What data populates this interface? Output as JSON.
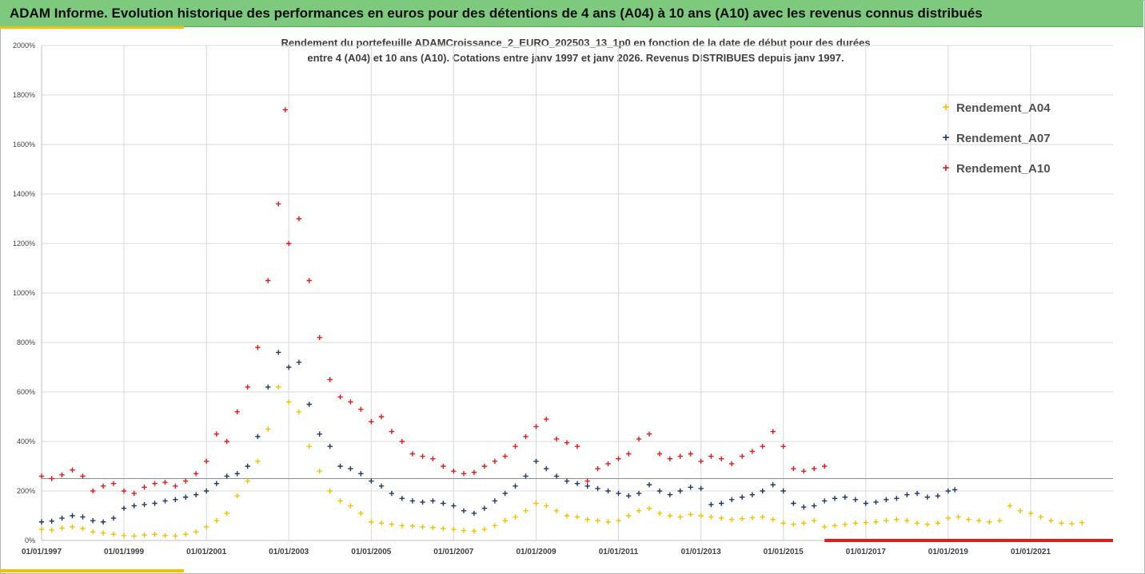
{
  "header": {
    "title": "ADAM Informe. Evolution historique des performances en euros pour des détentions de 4 ans (A04) à 10 ans (A10) avec les revenus connus distribués"
  },
  "colors": {
    "header_bg": "#7dc97d",
    "accent": "#f2c200",
    "A04": "#f2c200",
    "A07": "#203864",
    "A10": "#e41a1c"
  },
  "chart_data": {
    "type": "scatter",
    "title_line1": "Rendement du portefeuille ADAMCroissance_2_EURO_202503_13_1p0  en fonction de la date de début pour des durées",
    "title_line2": "entre 4 (A04) et 10 ans (A10). Cotations entre janv 1997 et janv 2026. Revenus DISTRIBUES depuis janv 1997.",
    "xlabel": "",
    "ylabel": "",
    "x_range": [
      "1997-01-01",
      "2023-01-01"
    ],
    "ylim": [
      0,
      2000
    ],
    "y_ticks": [
      "0%",
      "200%",
      "400%",
      "600%",
      "800%",
      "1000%",
      "1200%",
      "1400%",
      "1600%",
      "1800%",
      "2000%"
    ],
    "x_ticks": [
      "01/01/1997",
      "01/01/1999",
      "01/01/2001",
      "01/01/2003",
      "01/01/2005",
      "01/01/2007",
      "01/01/2009",
      "01/01/2011",
      "01/01/2013",
      "01/01/2015",
      "01/01/2017",
      "01/01/2019",
      "01/01/2021"
    ],
    "reference_line_y": 250,
    "grid": true,
    "legend_position": "top-right",
    "series": [
      {
        "name": "Rendement_A04",
        "color": "#f2c200",
        "points": [
          [
            "1997-01-01",
            45
          ],
          [
            "1997-04-01",
            42
          ],
          [
            "1997-07-01",
            50
          ],
          [
            "1997-10-01",
            55
          ],
          [
            "1998-01-01",
            48
          ],
          [
            "1998-04-01",
            35
          ],
          [
            "1998-07-01",
            30
          ],
          [
            "1998-10-01",
            25
          ],
          [
            "1999-01-01",
            20
          ],
          [
            "1999-04-01",
            18
          ],
          [
            "1999-07-01",
            22
          ],
          [
            "1999-10-01",
            25
          ],
          [
            "2000-01-01",
            20
          ],
          [
            "2000-04-01",
            18
          ],
          [
            "2000-07-01",
            25
          ],
          [
            "2000-10-01",
            35
          ],
          [
            "2001-01-01",
            55
          ],
          [
            "2001-04-01",
            80
          ],
          [
            "2001-07-01",
            110
          ],
          [
            "2001-10-01",
            180
          ],
          [
            "2002-01-01",
            240
          ],
          [
            "2002-04-01",
            320
          ],
          [
            "2002-07-01",
            450
          ],
          [
            "2002-10-01",
            620
          ],
          [
            "2003-01-01",
            560
          ],
          [
            "2003-04-01",
            520
          ],
          [
            "2003-07-01",
            380
          ],
          [
            "2003-10-01",
            280
          ],
          [
            "2004-01-01",
            200
          ],
          [
            "2004-04-01",
            160
          ],
          [
            "2004-07-01",
            140
          ],
          [
            "2004-10-01",
            110
          ],
          [
            "2005-01-01",
            75
          ],
          [
            "2005-04-01",
            70
          ],
          [
            "2005-07-01",
            65
          ],
          [
            "2005-10-01",
            60
          ],
          [
            "2006-01-01",
            58
          ],
          [
            "2006-04-01",
            55
          ],
          [
            "2006-07-01",
            52
          ],
          [
            "2006-10-01",
            48
          ],
          [
            "2007-01-01",
            45
          ],
          [
            "2007-04-01",
            40
          ],
          [
            "2007-07-01",
            38
          ],
          [
            "2007-10-01",
            45
          ],
          [
            "2008-01-01",
            60
          ],
          [
            "2008-04-01",
            80
          ],
          [
            "2008-07-01",
            95
          ],
          [
            "2008-10-01",
            120
          ],
          [
            "2009-01-01",
            150
          ],
          [
            "2009-04-01",
            140
          ],
          [
            "2009-07-01",
            120
          ],
          [
            "2009-10-01",
            100
          ],
          [
            "2010-01-01",
            95
          ],
          [
            "2010-04-01",
            85
          ],
          [
            "2010-07-01",
            80
          ],
          [
            "2010-10-01",
            75
          ],
          [
            "2011-01-01",
            80
          ],
          [
            "2011-04-01",
            100
          ],
          [
            "2011-07-01",
            120
          ],
          [
            "2011-10-01",
            130
          ],
          [
            "2012-01-01",
            110
          ],
          [
            "2012-04-01",
            100
          ],
          [
            "2012-07-01",
            95
          ],
          [
            "2012-10-01",
            105
          ],
          [
            "2013-01-01",
            100
          ],
          [
            "2013-04-01",
            95
          ],
          [
            "2013-07-01",
            90
          ],
          [
            "2013-10-01",
            85
          ],
          [
            "2014-01-01",
            88
          ],
          [
            "2014-04-01",
            92
          ],
          [
            "2014-07-01",
            95
          ],
          [
            "2014-10-01",
            85
          ],
          [
            "2015-01-01",
            70
          ],
          [
            "2015-04-01",
            65
          ],
          [
            "2015-07-01",
            70
          ],
          [
            "2015-10-01",
            80
          ],
          [
            "2016-01-01",
            55
          ],
          [
            "2016-04-01",
            60
          ],
          [
            "2016-07-01",
            65
          ],
          [
            "2016-10-01",
            70
          ],
          [
            "2017-01-01",
            72
          ],
          [
            "2017-04-01",
            75
          ],
          [
            "2017-07-01",
            80
          ],
          [
            "2017-10-01",
            85
          ],
          [
            "2018-01-01",
            80
          ],
          [
            "2018-04-01",
            70
          ],
          [
            "2018-07-01",
            65
          ],
          [
            "2018-10-01",
            70
          ],
          [
            "2019-01-01",
            90
          ],
          [
            "2019-04-01",
            95
          ],
          [
            "2019-07-01",
            85
          ],
          [
            "2019-10-01",
            80
          ],
          [
            "2020-01-01",
            75
          ],
          [
            "2020-04-01",
            80
          ],
          [
            "2020-07-01",
            140
          ],
          [
            "2020-10-01",
            120
          ],
          [
            "2021-01-01",
            110
          ],
          [
            "2021-04-01",
            95
          ],
          [
            "2021-07-01",
            80
          ],
          [
            "2021-10-01",
            70
          ],
          [
            "2022-01-01",
            68
          ],
          [
            "2022-04-01",
            72
          ]
        ]
      },
      {
        "name": "Rendement_A07",
        "color": "#203864",
        "points": [
          [
            "1997-01-01",
            75
          ],
          [
            "1997-04-01",
            78
          ],
          [
            "1997-07-01",
            90
          ],
          [
            "1997-10-01",
            100
          ],
          [
            "1998-01-01",
            95
          ],
          [
            "1998-04-01",
            80
          ],
          [
            "1998-07-01",
            75
          ],
          [
            "1998-10-01",
            90
          ],
          [
            "1999-01-01",
            130
          ],
          [
            "1999-04-01",
            140
          ],
          [
            "1999-07-01",
            145
          ],
          [
            "1999-10-01",
            150
          ],
          [
            "2000-01-01",
            160
          ],
          [
            "2000-04-01",
            165
          ],
          [
            "2000-07-01",
            175
          ],
          [
            "2000-10-01",
            185
          ],
          [
            "2001-01-01",
            200
          ],
          [
            "2001-04-01",
            230
          ],
          [
            "2001-07-01",
            260
          ],
          [
            "2001-10-01",
            270
          ],
          [
            "2002-01-01",
            300
          ],
          [
            "2002-04-01",
            420
          ],
          [
            "2002-07-01",
            620
          ],
          [
            "2002-10-01",
            760
          ],
          [
            "2003-01-01",
            700
          ],
          [
            "2003-04-01",
            720
          ],
          [
            "2003-07-01",
            550
          ],
          [
            "2003-10-01",
            430
          ],
          [
            "2004-01-01",
            380
          ],
          [
            "2004-04-01",
            300
          ],
          [
            "2004-07-01",
            290
          ],
          [
            "2004-10-01",
            270
          ],
          [
            "2005-01-01",
            240
          ],
          [
            "2005-04-01",
            220
          ],
          [
            "2005-07-01",
            190
          ],
          [
            "2005-10-01",
            170
          ],
          [
            "2006-01-01",
            160
          ],
          [
            "2006-04-01",
            155
          ],
          [
            "2006-07-01",
            160
          ],
          [
            "2006-10-01",
            150
          ],
          [
            "2007-01-01",
            140
          ],
          [
            "2007-04-01",
            120
          ],
          [
            "2007-07-01",
            110
          ],
          [
            "2007-10-01",
            130
          ],
          [
            "2008-01-01",
            160
          ],
          [
            "2008-04-01",
            190
          ],
          [
            "2008-07-01",
            220
          ],
          [
            "2008-10-01",
            260
          ],
          [
            "2009-01-01",
            320
          ],
          [
            "2009-04-01",
            290
          ],
          [
            "2009-07-01",
            260
          ],
          [
            "2009-10-01",
            240
          ],
          [
            "2010-01-01",
            230
          ],
          [
            "2010-04-01",
            220
          ],
          [
            "2010-07-01",
            210
          ],
          [
            "2010-10-01",
            200
          ],
          [
            "2011-01-01",
            190
          ],
          [
            "2011-04-01",
            180
          ],
          [
            "2011-07-01",
            190
          ],
          [
            "2011-10-01",
            225
          ],
          [
            "2012-01-01",
            200
          ],
          [
            "2012-04-01",
            185
          ],
          [
            "2012-07-01",
            200
          ],
          [
            "2012-10-01",
            215
          ],
          [
            "2013-01-01",
            210
          ],
          [
            "2013-04-01",
            145
          ],
          [
            "2013-07-01",
            150
          ],
          [
            "2013-10-01",
            165
          ],
          [
            "2014-01-01",
            175
          ],
          [
            "2014-04-01",
            185
          ],
          [
            "2014-07-01",
            200
          ],
          [
            "2014-10-01",
            225
          ],
          [
            "2015-01-01",
            200
          ],
          [
            "2015-04-01",
            150
          ],
          [
            "2015-07-01",
            135
          ],
          [
            "2015-10-01",
            140
          ],
          [
            "2016-01-01",
            160
          ],
          [
            "2016-04-01",
            170
          ],
          [
            "2016-07-01",
            175
          ],
          [
            "2016-10-01",
            165
          ],
          [
            "2017-01-01",
            150
          ],
          [
            "2017-04-01",
            155
          ],
          [
            "2017-07-01",
            165
          ],
          [
            "2017-10-01",
            170
          ],
          [
            "2018-01-01",
            185
          ],
          [
            "2018-04-01",
            190
          ],
          [
            "2018-07-01",
            175
          ],
          [
            "2018-10-01",
            180
          ],
          [
            "2019-01-01",
            200
          ],
          [
            "2019-03-01",
            205
          ]
        ]
      },
      {
        "name": "Rendement_A10",
        "color": "#e41a1c",
        "points": [
          [
            "1997-01-01",
            260
          ],
          [
            "1997-04-01",
            250
          ],
          [
            "1997-07-01",
            265
          ],
          [
            "1997-10-01",
            285
          ],
          [
            "1998-01-01",
            260
          ],
          [
            "1998-04-01",
            200
          ],
          [
            "1998-07-01",
            220
          ],
          [
            "1998-10-01",
            230
          ],
          [
            "1999-01-01",
            200
          ],
          [
            "1999-04-01",
            190
          ],
          [
            "1999-07-01",
            215
          ],
          [
            "1999-10-01",
            230
          ],
          [
            "2000-01-01",
            235
          ],
          [
            "2000-04-01",
            220
          ],
          [
            "2000-07-01",
            240
          ],
          [
            "2000-10-01",
            270
          ],
          [
            "2001-01-01",
            320
          ],
          [
            "2001-04-01",
            430
          ],
          [
            "2001-07-01",
            400
          ],
          [
            "2001-10-01",
            520
          ],
          [
            "2002-01-01",
            620
          ],
          [
            "2002-04-01",
            780
          ],
          [
            "2002-07-01",
            1050
          ],
          [
            "2002-10-01",
            1360
          ],
          [
            "2002-12-01",
            1740
          ],
          [
            "2003-01-01",
            1200
          ],
          [
            "2003-04-01",
            1300
          ],
          [
            "2003-07-01",
            1050
          ],
          [
            "2003-10-01",
            820
          ],
          [
            "2004-01-01",
            650
          ],
          [
            "2004-04-01",
            580
          ],
          [
            "2004-07-01",
            560
          ],
          [
            "2004-10-01",
            530
          ],
          [
            "2005-01-01",
            480
          ],
          [
            "2005-04-01",
            500
          ],
          [
            "2005-07-01",
            440
          ],
          [
            "2005-10-01",
            400
          ],
          [
            "2006-01-01",
            350
          ],
          [
            "2006-04-01",
            340
          ],
          [
            "2006-07-01",
            330
          ],
          [
            "2006-10-01",
            300
          ],
          [
            "2007-01-01",
            280
          ],
          [
            "2007-04-01",
            270
          ],
          [
            "2007-07-01",
            275
          ],
          [
            "2007-10-01",
            300
          ],
          [
            "2008-01-01",
            320
          ],
          [
            "2008-04-01",
            340
          ],
          [
            "2008-07-01",
            380
          ],
          [
            "2008-10-01",
            420
          ],
          [
            "2009-01-01",
            460
          ],
          [
            "2009-04-01",
            490
          ],
          [
            "2009-07-01",
            410
          ],
          [
            "2009-10-01",
            395
          ],
          [
            "2010-01-01",
            380
          ],
          [
            "2010-04-01",
            240
          ],
          [
            "2010-07-01",
            290
          ],
          [
            "2010-10-01",
            310
          ],
          [
            "2011-01-01",
            330
          ],
          [
            "2011-04-01",
            350
          ],
          [
            "2011-07-01",
            410
          ],
          [
            "2011-10-01",
            430
          ],
          [
            "2012-01-01",
            350
          ],
          [
            "2012-04-01",
            330
          ],
          [
            "2012-07-01",
            340
          ],
          [
            "2012-10-01",
            350
          ],
          [
            "2013-01-01",
            320
          ],
          [
            "2013-04-01",
            340
          ],
          [
            "2013-07-01",
            330
          ],
          [
            "2013-10-01",
            310
          ],
          [
            "2014-01-01",
            340
          ],
          [
            "2014-04-01",
            360
          ],
          [
            "2014-07-01",
            380
          ],
          [
            "2014-10-01",
            440
          ],
          [
            "2015-01-01",
            380
          ],
          [
            "2015-04-01",
            290
          ],
          [
            "2015-07-01",
            280
          ],
          [
            "2015-10-01",
            290
          ],
          [
            "2016-01-01",
            300
          ]
        ],
        "zero_range": [
          "2016-01-01",
          "2023-01-01"
        ]
      }
    ]
  }
}
